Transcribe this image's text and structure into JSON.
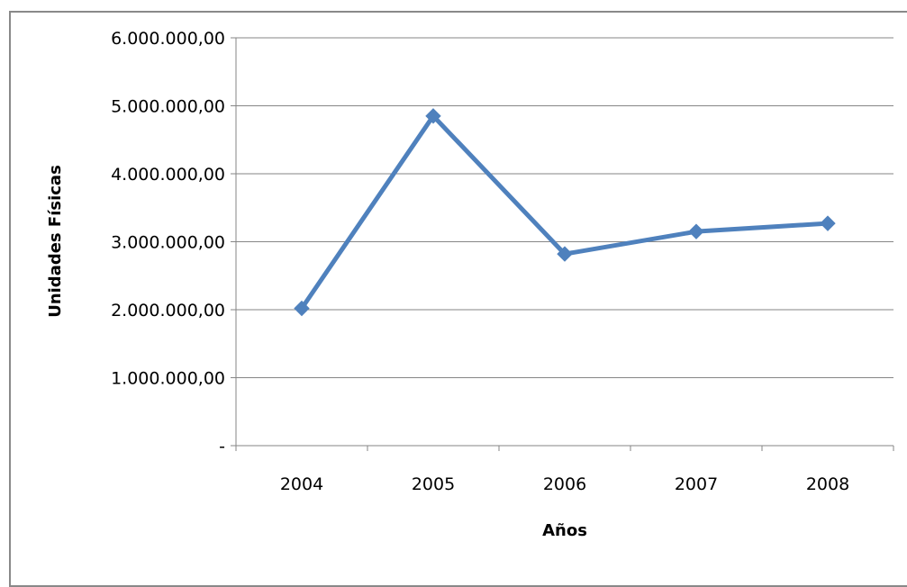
{
  "chart_data": {
    "type": "line",
    "title": "",
    "xlabel": "Años",
    "ylabel": "Unidades Físicas",
    "categories": [
      "2004",
      "2005",
      "2006",
      "2007",
      "2008"
    ],
    "series": [
      {
        "values": [
          2020000,
          4850000,
          2820000,
          3150000,
          3270000
        ],
        "color": "#4f81bd",
        "marker": "diamond"
      }
    ],
    "ylim": [
      0,
      6000000
    ],
    "yticks": [
      0,
      1000000,
      2000000,
      3000000,
      4000000,
      5000000,
      6000000
    ],
    "ytick_labels": [
      "-",
      "1.000.000,00",
      "2.000.000,00",
      "3.000.000,00",
      "4.000.000,00",
      "5.000.000,00",
      "6.000.000,00"
    ],
    "grid": true,
    "legend": "none"
  }
}
